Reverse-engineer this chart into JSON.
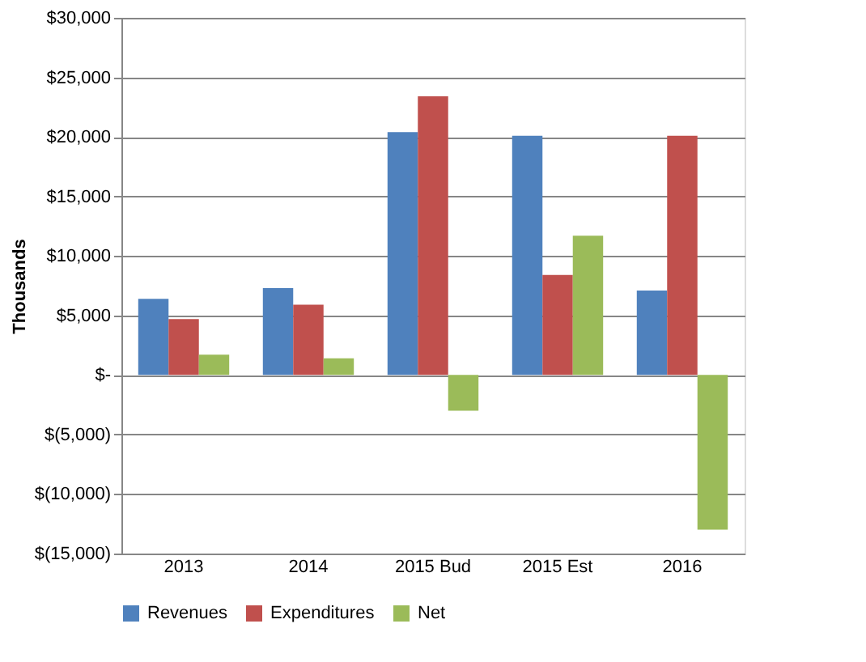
{
  "chart_data": {
    "type": "bar",
    "ylabel": "Thousands",
    "categories": [
      "2013",
      "2014",
      "2015 Bud",
      "2015 Est",
      "2016"
    ],
    "series": [
      {
        "name": "Revenues",
        "color": "#4f81bd",
        "values": [
          6400,
          7300,
          20400,
          20100,
          7100
        ]
      },
      {
        "name": "Expenditures",
        "color": "#c0504d",
        "values": [
          4700,
          5900,
          23400,
          8400,
          20100
        ]
      },
      {
        "name": "Net",
        "color": "#9bbb59",
        "values": [
          1700,
          1400,
          -3000,
          11700,
          -13000
        ]
      }
    ],
    "ylim": [
      -15000,
      30000
    ],
    "yticks": [
      {
        "value": -15000,
        "label": "$(15,000)"
      },
      {
        "value": -10000,
        "label": "$(10,000)"
      },
      {
        "value": -5000,
        "label": "$(5,000)"
      },
      {
        "value": 0,
        "label": "$-"
      },
      {
        "value": 5000,
        "label": "$5,000"
      },
      {
        "value": 10000,
        "label": "$10,000"
      },
      {
        "value": 15000,
        "label": "$15,000"
      },
      {
        "value": 20000,
        "label": "$20,000"
      },
      {
        "value": 25000,
        "label": "$25,000"
      },
      {
        "value": 30000,
        "label": "$30,000"
      }
    ],
    "grid": "y",
    "legend": "bottom"
  }
}
